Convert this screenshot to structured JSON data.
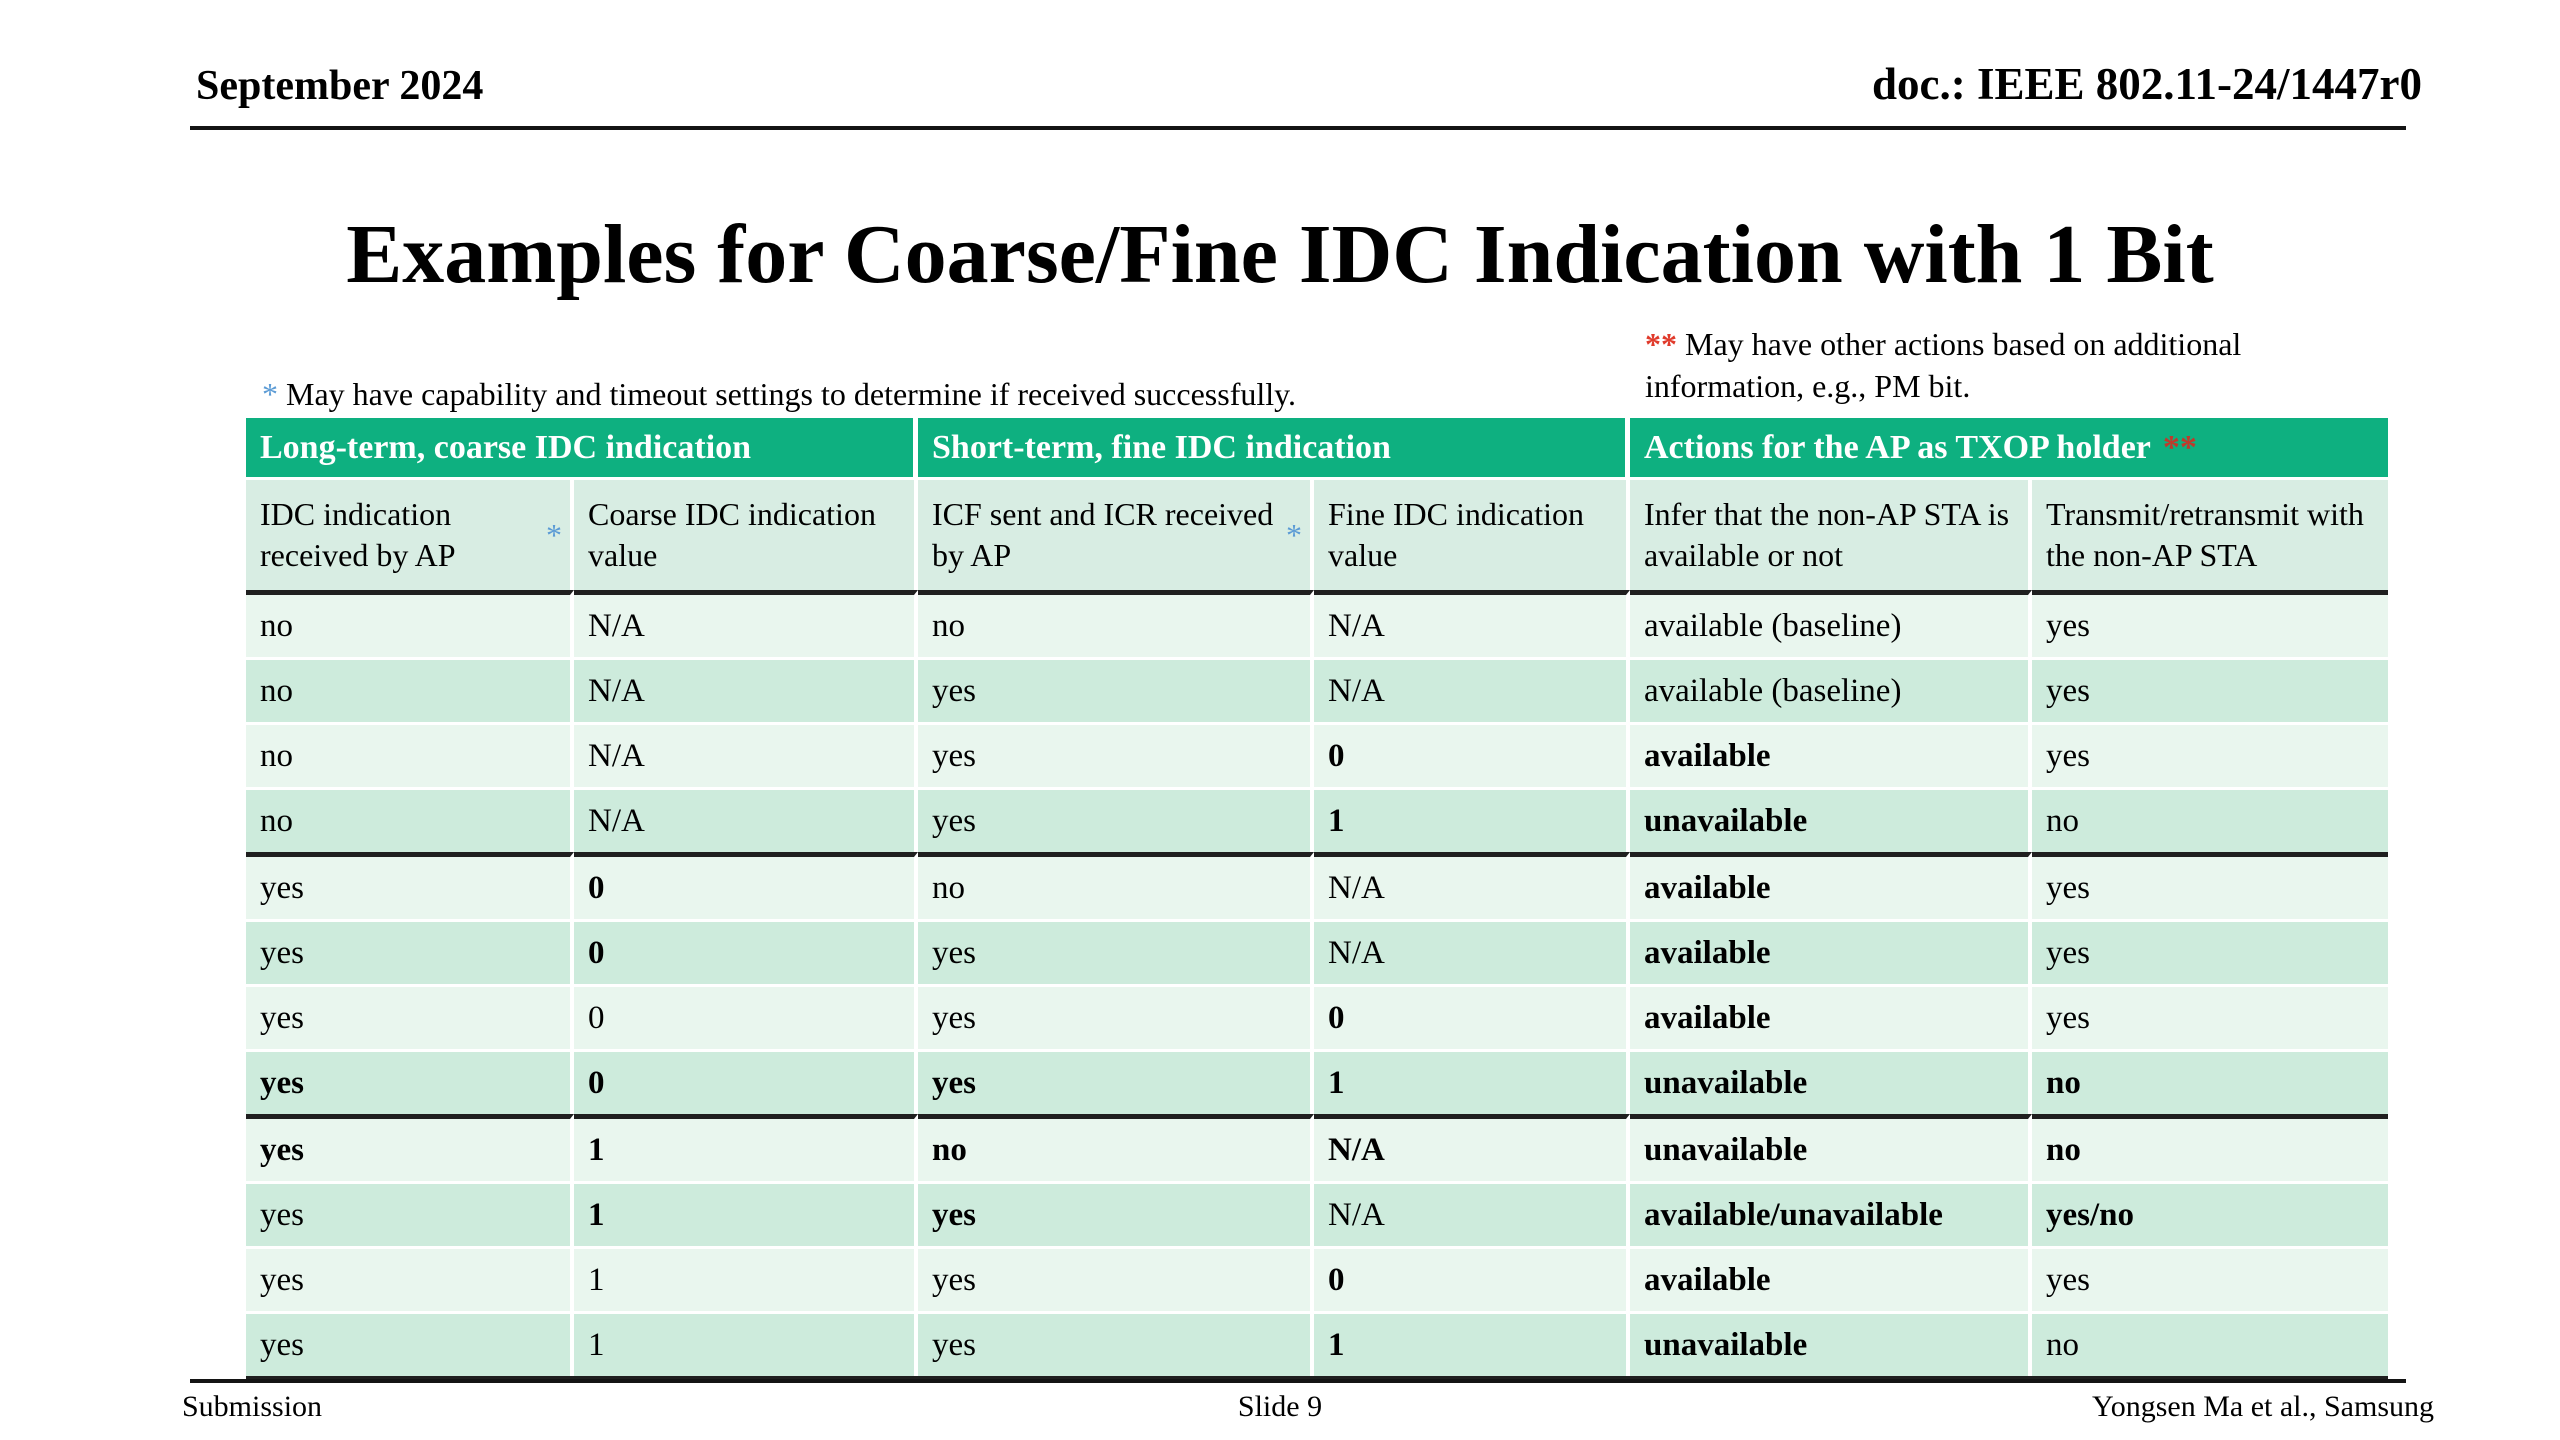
{
  "colors": {
    "accent_blue": "#5b9bd5",
    "accent_red": "#e03a2b",
    "accent_red_dark": "#c0392b"
  },
  "page_header": {
    "date": "September 2024",
    "doc_id": "doc.: IEEE 802.11-24/1447r0"
  },
  "title": "Examples for Coarse/Fine IDC Indication with 1 Bit",
  "notes": {
    "left": {
      "marker": "*",
      "text": "May have capability and timeout settings to determine if received successfully."
    },
    "right": {
      "marker": "**",
      "text": "May have other actions based on additional information, e.g., PM bit."
    }
  },
  "table": {
    "colors": {
      "group_header_bg": "#0eb080",
      "subheader_bg": "#d8ede3",
      "row_odd_bg": "#e9f6ee",
      "row_even_bg": "#cdebdc",
      "thick_border": "#1f1f1f"
    },
    "group_headers": [
      {
        "label": "Long-term, coarse IDC indication",
        "marker": ""
      },
      {
        "label": "Short-term, fine IDC indication",
        "marker": ""
      },
      {
        "label": "Actions for the AP as TXOP holder",
        "marker": "**"
      }
    ],
    "column_headers": [
      {
        "text": "IDC indication received by AP",
        "marker": "*"
      },
      {
        "text": "Coarse IDC indication value",
        "marker": ""
      },
      {
        "text": "ICF sent and ICR received by AP",
        "marker": "*"
      },
      {
        "text": "Fine IDC indication value",
        "marker": ""
      },
      {
        "text": "Infer that the non-AP STA is available or not",
        "marker": ""
      },
      {
        "text": "Transmit/retransmit with the non-AP STA",
        "marker": ""
      }
    ],
    "rows": [
      {
        "cells": [
          "no",
          "N/A",
          "no",
          "N/A",
          "available (baseline)",
          "yes"
        ],
        "bold": [
          0,
          0,
          0,
          0,
          0,
          0
        ],
        "thick_top": false
      },
      {
        "cells": [
          "no",
          "N/A",
          "yes",
          "N/A",
          "available (baseline)",
          "yes"
        ],
        "bold": [
          0,
          0,
          0,
          0,
          0,
          0
        ],
        "thick_top": false
      },
      {
        "cells": [
          "no",
          "N/A",
          "yes",
          "0",
          "available",
          "yes"
        ],
        "bold": [
          0,
          0,
          0,
          1,
          1,
          0
        ],
        "thick_top": false
      },
      {
        "cells": [
          "no",
          "N/A",
          "yes",
          "1",
          "unavailable",
          "no"
        ],
        "bold": [
          0,
          0,
          0,
          1,
          1,
          0
        ],
        "thick_top": false
      },
      {
        "cells": [
          "yes",
          "0",
          "no",
          "N/A",
          "available",
          "yes"
        ],
        "bold": [
          0,
          1,
          0,
          0,
          1,
          0
        ],
        "thick_top": true
      },
      {
        "cells": [
          "yes",
          "0",
          "yes",
          "N/A",
          "available",
          "yes"
        ],
        "bold": [
          0,
          1,
          0,
          0,
          1,
          0
        ],
        "thick_top": false
      },
      {
        "cells": [
          "yes",
          "0",
          "yes",
          "0",
          "available",
          "yes"
        ],
        "bold": [
          0,
          0,
          0,
          1,
          1,
          0
        ],
        "thick_top": false
      },
      {
        "cells": [
          "yes",
          "0",
          "yes",
          "1",
          "unavailable",
          "no"
        ],
        "bold": [
          1,
          1,
          1,
          1,
          1,
          1
        ],
        "thick_top": false
      },
      {
        "cells": [
          "yes",
          "1",
          "no",
          "N/A",
          "unavailable",
          "no"
        ],
        "bold": [
          1,
          1,
          1,
          1,
          1,
          1
        ],
        "thick_top": true
      },
      {
        "cells": [
          "yes",
          "1",
          "yes",
          "N/A",
          "available/unavailable",
          "yes/no"
        ],
        "bold": [
          0,
          1,
          1,
          0,
          1,
          1
        ],
        "thick_top": false
      },
      {
        "cells": [
          "yes",
          "1",
          "yes",
          "0",
          "available",
          "yes"
        ],
        "bold": [
          0,
          0,
          0,
          1,
          1,
          0
        ],
        "thick_top": false
      },
      {
        "cells": [
          "yes",
          "1",
          "yes",
          "1",
          "unavailable",
          "no"
        ],
        "bold": [
          0,
          0,
          0,
          1,
          1,
          0
        ],
        "thick_top": false
      }
    ]
  },
  "footer": {
    "left": "Submission",
    "center": "Slide 9",
    "right": "Yongsen Ma et al., Samsung"
  }
}
